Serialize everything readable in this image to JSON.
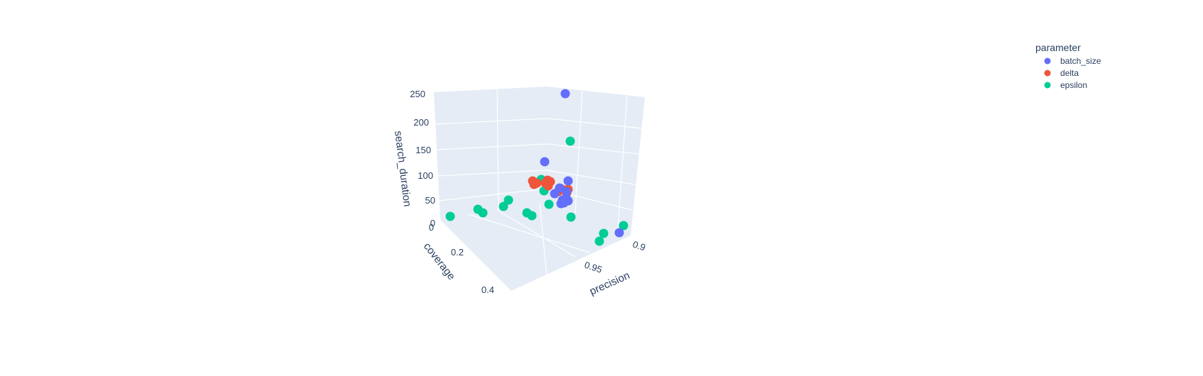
{
  "chart_data": {
    "type": "scatter3d",
    "axes": {
      "x": {
        "label": "precision",
        "ticks": [
          "0.9",
          "0.95"
        ],
        "range": [
          0.88,
          1.0
        ]
      },
      "y": {
        "label": "coverage",
        "ticks": [
          "0",
          "0.2",
          "0.4"
        ],
        "range": [
          0,
          0.45
        ]
      },
      "z": {
        "label": "search_duration",
        "ticks": [
          "0",
          "50",
          "100",
          "150",
          "200",
          "250"
        ],
        "range": [
          0,
          250
        ]
      }
    },
    "legend": {
      "title": "parameter",
      "position": "top-right"
    },
    "grid": true,
    "series": [
      {
        "name": "batch_size",
        "color": "#636efa",
        "points": [
          {
            "precision": 0.965,
            "coverage": 0.02,
            "search_duration": 250
          },
          {
            "precision": 0.975,
            "coverage": 0.05,
            "search_duration": 110
          },
          {
            "precision": 0.96,
            "coverage": 0.08,
            "search_duration": 72
          },
          {
            "precision": 0.965,
            "coverage": 0.08,
            "search_duration": 40
          },
          {
            "precision": 0.968,
            "coverage": 0.09,
            "search_duration": 35
          },
          {
            "precision": 0.962,
            "coverage": 0.09,
            "search_duration": 38
          },
          {
            "precision": 0.97,
            "coverage": 0.08,
            "search_duration": 45
          },
          {
            "precision": 0.958,
            "coverage": 0.1,
            "search_duration": 42
          },
          {
            "precision": 0.97,
            "coverage": 0.1,
            "search_duration": 55
          },
          {
            "precision": 0.965,
            "coverage": 0.11,
            "search_duration": 48
          },
          {
            "precision": 0.96,
            "coverage": 0.09,
            "search_duration": 80
          },
          {
            "precision": 0.962,
            "coverage": 0.12,
            "search_duration": 30
          },
          {
            "precision": 0.905,
            "coverage": 0.05,
            "search_duration": 5
          }
        ]
      },
      {
        "name": "delta",
        "color": "#ef553b",
        "points": [
          {
            "precision": 0.985,
            "coverage": 0.04,
            "search_duration": 70
          },
          {
            "precision": 0.98,
            "coverage": 0.05,
            "search_duration": 68
          },
          {
            "precision": 0.982,
            "coverage": 0.06,
            "search_duration": 72
          },
          {
            "precision": 0.978,
            "coverage": 0.04,
            "search_duration": 65
          },
          {
            "precision": 0.976,
            "coverage": 0.05,
            "search_duration": 70
          },
          {
            "precision": 0.97,
            "coverage": 0.08,
            "search_duration": 62
          },
          {
            "precision": 0.968,
            "coverage": 0.07,
            "search_duration": 60
          },
          {
            "precision": 0.972,
            "coverage": 0.09,
            "search_duration": 58
          },
          {
            "precision": 0.965,
            "coverage": 0.08,
            "search_duration": 64
          },
          {
            "precision": 0.96,
            "coverage": 0.1,
            "search_duration": 55
          },
          {
            "precision": 0.962,
            "coverage": 0.09,
            "search_duration": 52
          },
          {
            "precision": 0.958,
            "coverage": 0.1,
            "search_duration": 50
          }
        ]
      },
      {
        "name": "epsilon",
        "color": "#00cc96",
        "points": [
          {
            "precision": 0.99,
            "coverage": 0.02,
            "search_duration": 180
          },
          {
            "precision": 0.99,
            "coverage": 0.25,
            "search_duration": 0
          },
          {
            "precision": 0.985,
            "coverage": 0.2,
            "search_duration": 15
          },
          {
            "precision": 0.99,
            "coverage": 0.2,
            "search_duration": 10
          },
          {
            "precision": 0.985,
            "coverage": 0.15,
            "search_duration": 22
          },
          {
            "precision": 0.99,
            "coverage": 0.15,
            "search_duration": 18
          },
          {
            "precision": 0.985,
            "coverage": 0.1,
            "search_duration": 45
          },
          {
            "precision": 0.985,
            "coverage": 0.1,
            "search_duration": 38
          },
          {
            "precision": 0.98,
            "coverage": 0.08,
            "search_duration": 55
          },
          {
            "precision": 0.98,
            "coverage": 0.07,
            "search_duration": 60
          },
          {
            "precision": 0.975,
            "coverage": 0.06,
            "search_duration": 30
          },
          {
            "precision": 0.96,
            "coverage": 0.08,
            "search_duration": 5
          },
          {
            "precision": 0.95,
            "coverage": 0.04,
            "search_duration": 2
          },
          {
            "precision": 0.93,
            "coverage": 0.05,
            "search_duration": 2
          },
          {
            "precision": 0.9,
            "coverage": 0.06,
            "search_duration": 2
          }
        ]
      }
    ]
  },
  "_screen_points": {
    "batch_size": [
      [
        796,
        132
      ],
      [
        767,
        228
      ],
      [
        800,
        255
      ],
      [
        781,
        273
      ],
      [
        797,
        279
      ],
      [
        792,
        282
      ],
      [
        800,
        283
      ],
      [
        795,
        285
      ],
      [
        790,
        287
      ],
      [
        798,
        270
      ],
      [
        788,
        265
      ],
      [
        794,
        286
      ],
      [
        872,
        328
      ]
    ],
    "delta": [
      [
        750,
        255
      ],
      [
        756,
        258
      ],
      [
        752,
        260
      ],
      [
        771,
        254
      ],
      [
        775,
        256
      ],
      [
        768,
        258
      ],
      [
        772,
        262
      ],
      [
        790,
        266
      ],
      [
        795,
        268
      ],
      [
        800,
        267
      ],
      [
        786,
        270
      ],
      [
        798,
        272
      ]
    ],
    "epsilon": [
      [
        803,
        199
      ],
      [
        634,
        305
      ],
      [
        673,
        295
      ],
      [
        680,
        300
      ],
      [
        709,
        291
      ],
      [
        716,
        282
      ],
      [
        742,
        300
      ],
      [
        749,
        304
      ],
      [
        762,
        253
      ],
      [
        766,
        269
      ],
      [
        773,
        288
      ],
      [
        804,
        306
      ],
      [
        850,
        329
      ],
      [
        844,
        340
      ],
      [
        878,
        318
      ]
    ]
  }
}
